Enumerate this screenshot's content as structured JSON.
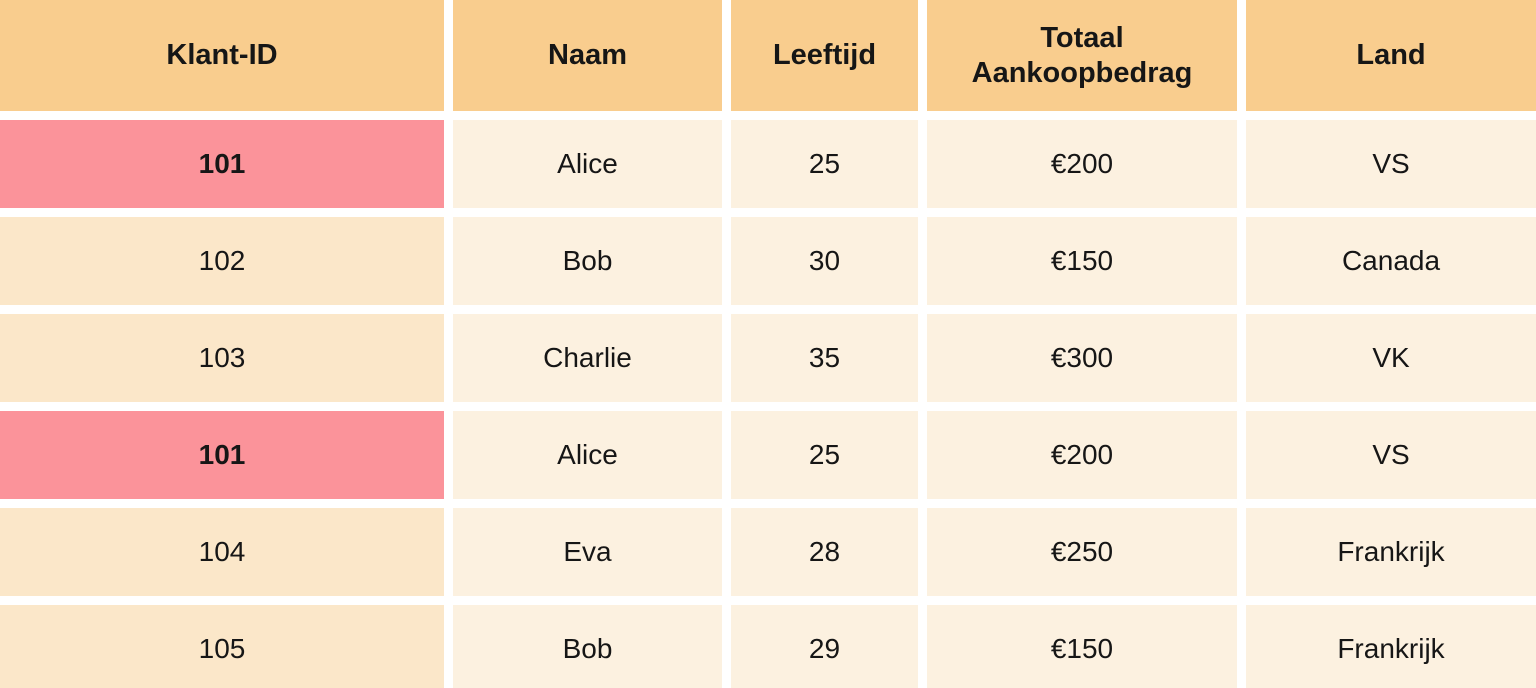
{
  "chart_data": {
    "type": "table",
    "title": "",
    "columns": [
      "Klant-ID",
      "Naam",
      "Leeftijd",
      "Totaal Aankoopbedrag",
      "Land"
    ],
    "rows": [
      [
        "101",
        "Alice",
        "25",
        "€200",
        "VS"
      ],
      [
        "102",
        "Bob",
        "30",
        "€150",
        "Canada"
      ],
      [
        "103",
        "Charlie",
        "35",
        "€300",
        "VK"
      ],
      [
        "101",
        "Alice",
        "25",
        "€200",
        "VS"
      ],
      [
        "104",
        "Eva",
        "28",
        "€250",
        "Frankrijk"
      ],
      [
        "105",
        "Bob",
        "29",
        "€150",
        "Frankrijk"
      ]
    ],
    "highlighted_id_rows": [
      0,
      3
    ],
    "layout": {
      "grid": "off",
      "header_position": "top",
      "highlight_column": "Klant-ID"
    }
  },
  "colors": {
    "header_bg": "#F9CD8E",
    "id_cell_bg": "#FBE7C9",
    "cell_bg": "#FCF1E0",
    "highlight_bg": "#FB939A",
    "gap": "#FFFFFF",
    "text": "#161616"
  }
}
